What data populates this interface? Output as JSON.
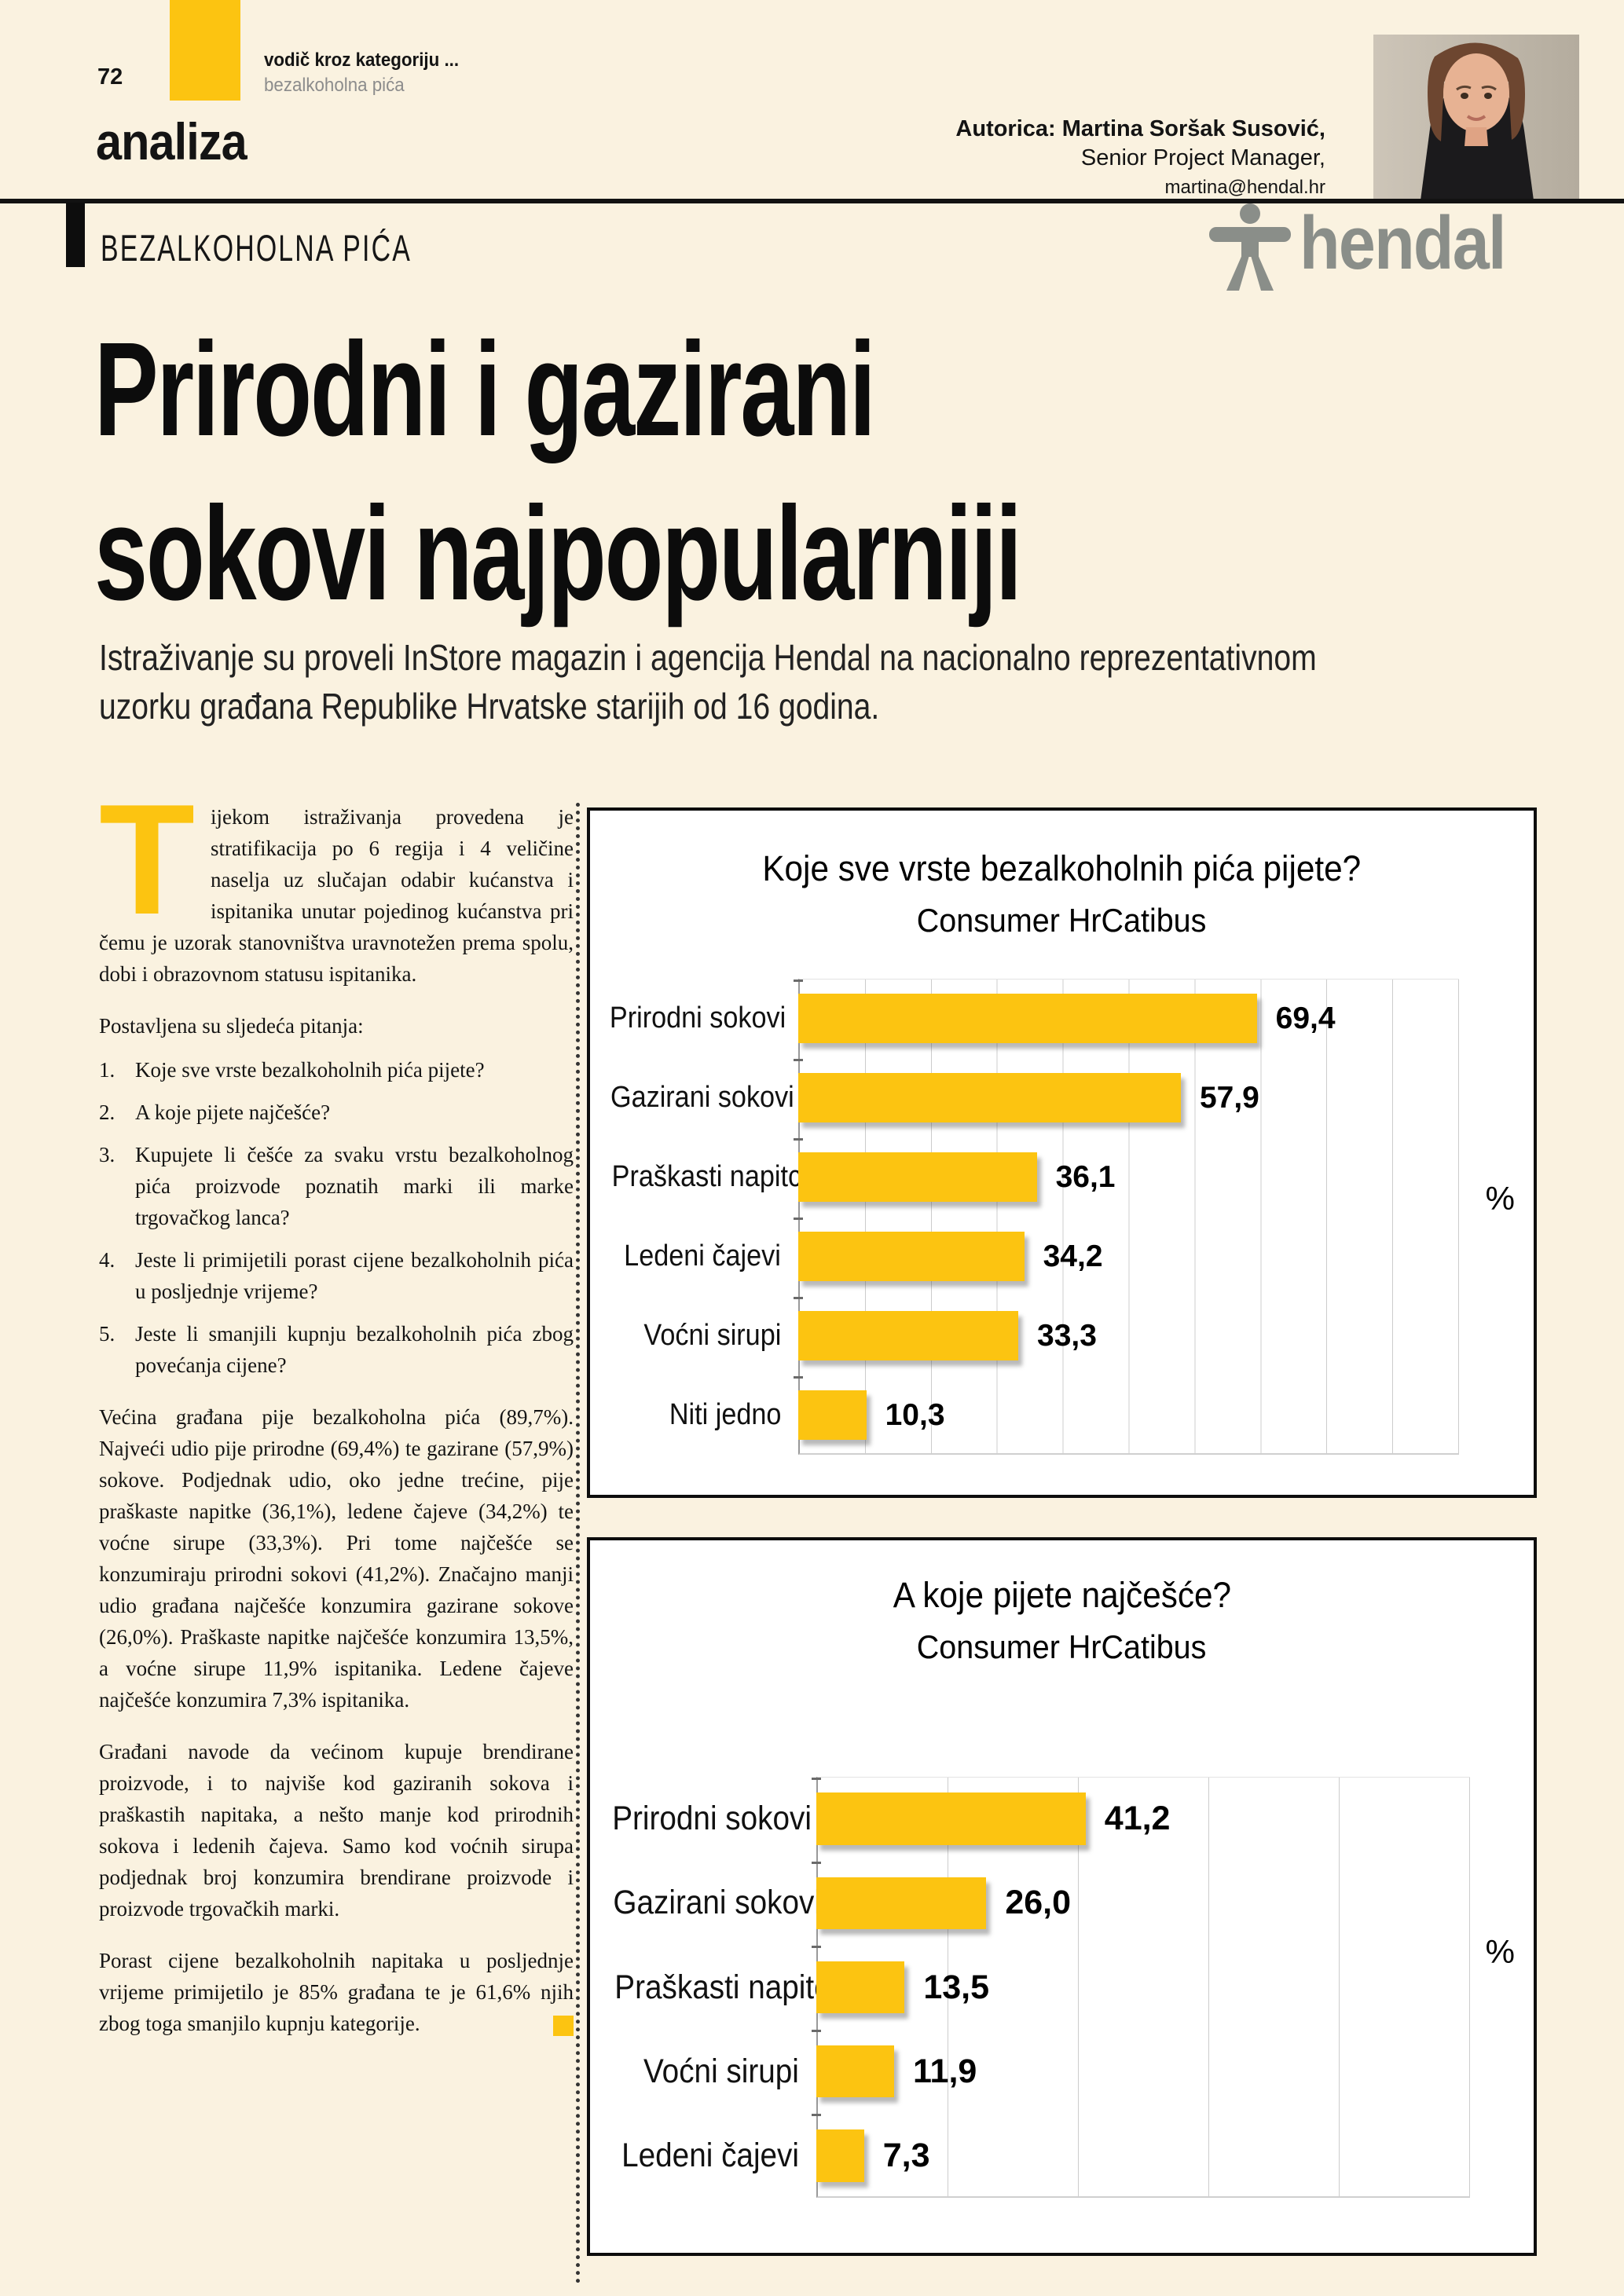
{
  "colors": {
    "page_bg": "#FAF2E0",
    "accent_yellow": "#FCC411",
    "logo_gray": "#8A8E89",
    "kicker_gray": "#8C8C8C",
    "text": "#141414"
  },
  "page": {
    "number": "72",
    "kicker_bold": "vodič kroz kategoriju ...",
    "kicker_sub": "bezalkoholna pića",
    "section": "analiza",
    "category_label": "BEZALKOHOLNA PIĆA"
  },
  "author": {
    "line1": "Autorica: Martina Soršak Susović,",
    "line2": "Senior Project Manager,",
    "line3": "martina@hendal.hr"
  },
  "logo": {
    "text": "hendal"
  },
  "article": {
    "title_line1": "Prirodni i gazirani",
    "title_line2": "sokovi najpopularniji",
    "intro_line1": "Istraživanje su proveli InStore magazin i agencija Hendal na nacionalno reprezentativnom",
    "intro_line2": "uzorku građana Republike Hrvatske starijih od 16 godina.",
    "dropcap": "T",
    "p1": "ijekom istraživanja provedena je stratifikacija po 6 regija i 4 veličine naselja uz slučajan odabir kućanstva i ispitanika unutar pojedinog kućanstva pri čemu je uzorak stanovništva uravnotežen prema spolu, dobi i obrazovnom statusu ispitanika.",
    "questions_intro": "Postavljena su sljedeća pitanja:",
    "questions": [
      "Koje sve vrste bezalkoholnih pića pijete?",
      "A koje pijete najčešće?",
      "Kupujete li češće za svaku vrstu bezalkoholnog pića proizvode poznatih marki ili marke trgovačkog lanca?",
      "Jeste li primijetili porast cijene bezalkoholnih pića u posljednje vrijeme?",
      "Jeste li smanjili kupnju bezalkoholnih pića zbog povećanja cijene?"
    ],
    "p3": "Većina građana pije bezalkoholna pića (89,7%). Najveći udio pije prirodne (69,4%) te gazirane (57,9%) sokove. Podjednak udio, oko jedne trećine, pije praškaste napitke (36,1%), ledene čajeve (34,2%) te voćne sirupe (33,3%). Pri tome najčešće se konzumiraju prirodni sokovi (41,2%). Značajno manji udio građana najčešće konzumira gazirane sokove (26,0%). Praškaste napitke najčešće konzumira 13,5%, a voćne sirupe 11,9% ispitanika. Ledene čajeve najčešće konzumira 7,3% ispitanika.",
    "p4": "Građani navode da većinom kupuje brendirane proizvode, i to najviše kod gaziranih sokova i praškastih napitaka, a nešto manje kod prirodnih sokova i ledenih čajeva. Samo kod voćnih sirupa podjednak broj konzumira brendirane proizvode i proizvode trgovačkih marki.",
    "p5": "Porast cijene bezalkoholnih napitaka u posljednje vrijeme primijetilo je 85% građana te je 61,6% njih zbog toga smanjilo kupnju kategorije."
  },
  "chart_data": [
    {
      "type": "bar",
      "orientation": "horizontal",
      "title": "Koje sve vrste bezalkoholnih pića pijete?",
      "subtitle": "Consumer HrCatibus",
      "categories": [
        "Prirodni sokovi",
        "Gazirani sokovi",
        "Praškasti napitci",
        "Ledeni čajevi",
        "Voćni sirupi",
        "Niti jedno"
      ],
      "values": [
        69.4,
        57.9,
        36.1,
        34.2,
        33.3,
        10.3
      ],
      "value_labels": [
        "69,4",
        "57,9",
        "36,1",
        "34,2",
        "33,3",
        "10,3"
      ],
      "unit": "%",
      "xlim": [
        0,
        100
      ],
      "grid_step": 10,
      "grid": true,
      "bar_color": "#FCC411"
    },
    {
      "type": "bar",
      "orientation": "horizontal",
      "title": "A koje pijete najčešće?",
      "subtitle": "Consumer HrCatibus",
      "categories": [
        "Prirodni sokovi",
        "Gazirani sokovi",
        "Praškasti napitci",
        "Voćni sirupi",
        "Ledeni čajevi"
      ],
      "values": [
        41.2,
        26.0,
        13.5,
        11.9,
        7.3
      ],
      "value_labels": [
        "41,2",
        "26,0",
        "13,5",
        "11,9",
        "7,3"
      ],
      "unit": "%",
      "xlim": [
        0,
        100
      ],
      "grid_step": 20,
      "grid": true,
      "bar_color": "#FCC411"
    }
  ]
}
